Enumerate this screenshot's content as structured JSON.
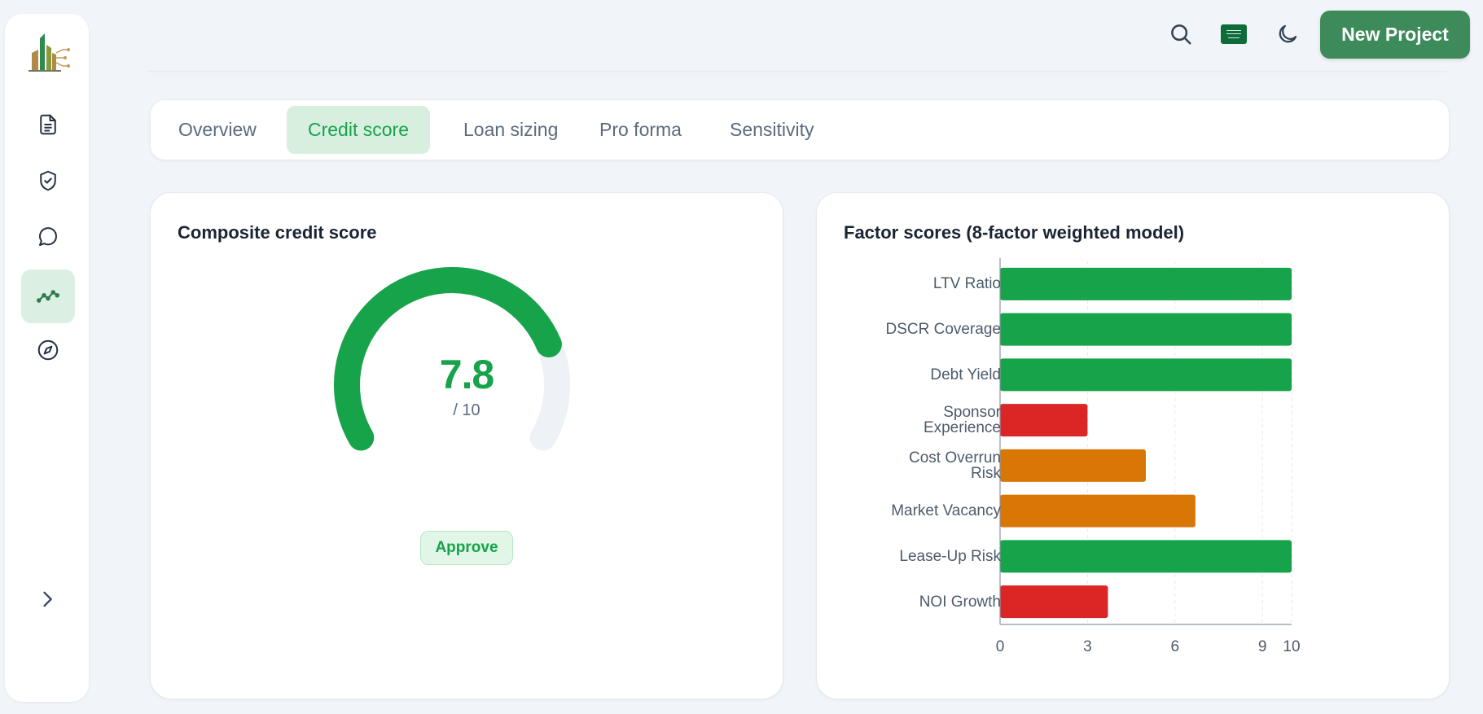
{
  "app": {
    "nav": [
      {
        "name": "document-icon",
        "active": false
      },
      {
        "name": "shield-check-icon",
        "active": false
      },
      {
        "name": "chat-bubble-icon",
        "active": false
      },
      {
        "name": "trend-line-icon",
        "active": true
      },
      {
        "name": "compass-icon",
        "active": false
      }
    ],
    "expand_icon": "chevron-right-icon",
    "logo_icon": "buildings-logo-icon"
  },
  "header": {
    "search_icon": "search-icon",
    "language_icon": "saudi-flag-icon",
    "theme_icon": "moon-icon",
    "new_project_label": "New Project"
  },
  "tabs": [
    {
      "label": "Overview",
      "active": false
    },
    {
      "label": "Credit score",
      "active": true
    },
    {
      "label": "Loan sizing",
      "active": false
    },
    {
      "label": "Pro forma",
      "active": false
    },
    {
      "label": "Sensitivity",
      "active": false
    }
  ],
  "composite": {
    "title": "Composite credit score",
    "score": "7.8",
    "score_value": 7.8,
    "max_label": "/ 10",
    "max_value": 10,
    "decision": "Approve"
  },
  "factors": {
    "title": "Factor scores (8-factor weighted model)"
  },
  "colors": {
    "good": "#16a34a",
    "medium": "#d97706",
    "bad": "#dc2626",
    "accent": "#3d8b5a",
    "track": "#eef2f6"
  },
  "chart_data": {
    "type": "bar",
    "orientation": "horizontal",
    "title": "Factor scores (8-factor weighted model)",
    "categories": [
      "LTV Ratio",
      "DSCR Coverage",
      "Debt Yield",
      "Sponsor Experience",
      "Cost Overrun Risk",
      "Market Vacancy",
      "Lease-Up Risk",
      "NOI Growth"
    ],
    "category_labels": [
      "LTV Ratio",
      "DSCR Coverage",
      "Debt Yield",
      "Sponsor\nExperience",
      "Cost Overrun\nRisk",
      "Market Vacancy",
      "Lease-Up Risk",
      "NOI Growth"
    ],
    "values": [
      10,
      10,
      10,
      3,
      5,
      6.7,
      10,
      3.7
    ],
    "bar_colors": [
      "#16a34a",
      "#16a34a",
      "#16a34a",
      "#dc2626",
      "#d97706",
      "#d97706",
      "#16a34a",
      "#dc2626"
    ],
    "xlim": [
      0,
      10
    ],
    "xticks": [
      0,
      3,
      6,
      9,
      10
    ],
    "grid": "vertical dashed",
    "xlabel": "",
    "ylabel": ""
  }
}
